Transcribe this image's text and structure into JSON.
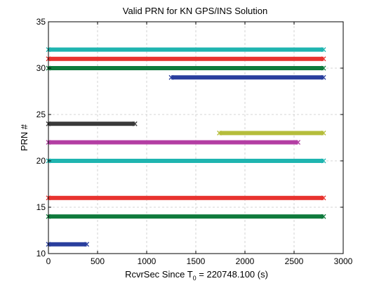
{
  "chart_data": {
    "type": "scatter",
    "title": "Valid PRN for KN GPS/INS Solution",
    "xlabel_main": "RcvrSec Since T",
    "xlabel_sub": "0",
    "xlabel_tail": " = 220748.100 (s)",
    "ylabel": "PRN #",
    "xlim": [
      0,
      3000
    ],
    "ylim": [
      10,
      35
    ],
    "xticks": [
      0,
      500,
      1000,
      1500,
      2000,
      2500,
      3000
    ],
    "yticks": [
      10,
      15,
      20,
      25,
      30,
      35
    ],
    "grid": true,
    "series": [
      {
        "prn": 32,
        "x_start": 0,
        "x_end": 2800,
        "color": "#1fb5b0"
      },
      {
        "prn": 31,
        "x_start": 0,
        "x_end": 2800,
        "color": "#e8332f"
      },
      {
        "prn": 30,
        "x_start": 0,
        "x_end": 2800,
        "color": "#0f7a3c"
      },
      {
        "prn": 29,
        "x_start": 1250,
        "x_end": 2800,
        "color": "#2a3f9e"
      },
      {
        "prn": 24,
        "x_start": 0,
        "x_end": 880,
        "color": "#3a3a3a"
      },
      {
        "prn": 23,
        "x_start": 1740,
        "x_end": 2800,
        "color": "#b5bd3b"
      },
      {
        "prn": 22,
        "x_start": 0,
        "x_end": 2540,
        "color": "#b33ea3"
      },
      {
        "prn": 20,
        "x_start": 0,
        "x_end": 2800,
        "color": "#1fb5b0"
      },
      {
        "prn": 16,
        "x_start": 0,
        "x_end": 2800,
        "color": "#e8332f"
      },
      {
        "prn": 14,
        "x_start": 0,
        "x_end": 2800,
        "color": "#0f7a3c"
      },
      {
        "prn": 11,
        "x_start": 0,
        "x_end": 390,
        "color": "#2a3f9e"
      }
    ]
  }
}
